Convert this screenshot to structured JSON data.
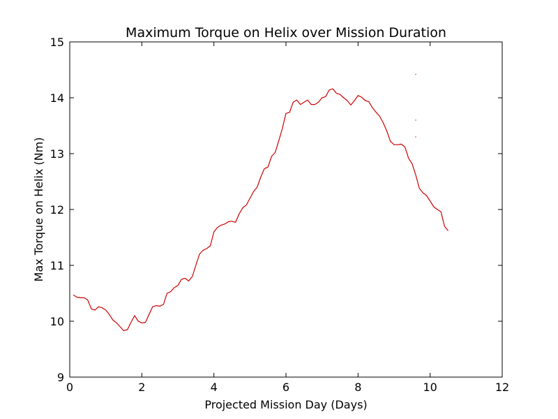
{
  "chart_data": {
    "type": "line",
    "title": "Maximum Torque on Helix over Mission Duration",
    "xlabel": "Projected Mission Day (Days)",
    "ylabel": "Max Torque on Helix (Nm)",
    "xlim": [
      0,
      12
    ],
    "ylim": [
      9,
      15
    ],
    "xticks": [
      0,
      2,
      4,
      6,
      8,
      10,
      12
    ],
    "yticks": [
      9,
      10,
      11,
      12,
      13,
      14,
      15
    ],
    "xtick_labels": [
      "0",
      "2",
      "4",
      "6",
      "8",
      "10",
      "12"
    ],
    "ytick_labels": [
      "9",
      "10",
      "11",
      "12",
      "13",
      "14",
      "15"
    ],
    "grid": false,
    "series": [
      {
        "color": "#cc0000",
        "x": [
          0.1,
          0.2,
          0.3,
          0.4,
          0.5,
          0.6,
          0.7,
          0.8,
          0.9,
          1.0,
          1.1,
          1.2,
          1.3,
          1.4,
          1.5,
          1.6,
          1.7,
          1.8,
          1.9,
          2.0,
          2.1,
          2.2,
          2.3,
          2.4,
          2.5,
          2.6,
          2.7,
          2.8,
          2.9,
          3.0,
          3.1,
          3.2,
          3.3,
          3.4,
          3.5,
          3.6,
          3.7,
          3.8,
          3.9,
          4.0,
          4.1,
          4.2,
          4.3,
          4.4,
          4.5,
          4.6,
          4.7,
          4.8,
          4.9,
          5.0,
          5.1,
          5.2,
          5.3,
          5.4,
          5.5,
          5.6,
          5.7,
          5.8,
          5.9,
          6.0,
          6.1,
          6.2,
          6.3,
          6.4,
          6.5,
          6.6,
          6.7,
          6.8,
          6.9,
          7.0,
          7.1,
          7.2,
          7.3,
          7.4,
          7.5,
          7.6,
          7.7,
          7.8,
          7.9,
          8.0,
          8.1,
          8.2,
          8.3,
          8.4,
          8.5,
          8.6,
          8.7,
          8.8,
          8.9,
          9.0,
          9.1,
          9.2,
          9.3,
          9.4,
          9.5,
          9.6,
          9.7,
          9.8,
          9.9,
          10.0,
          10.1,
          10.2,
          10.3,
          10.4,
          10.5
        ],
        "y": [
          10.47,
          10.43,
          10.42,
          10.42,
          10.38,
          10.22,
          10.2,
          10.26,
          10.24,
          10.2,
          10.12,
          10.02,
          9.97,
          9.9,
          9.83,
          9.85,
          9.98,
          10.1,
          10.0,
          9.97,
          9.98,
          10.12,
          10.26,
          10.28,
          10.27,
          10.3,
          10.5,
          10.53,
          10.6,
          10.64,
          10.75,
          10.77,
          10.72,
          10.8,
          11.0,
          11.2,
          11.27,
          11.3,
          11.35,
          11.6,
          11.68,
          11.72,
          11.74,
          11.78,
          11.79,
          11.77,
          11.92,
          12.03,
          12.08,
          12.2,
          12.32,
          12.4,
          12.58,
          12.73,
          12.76,
          12.95,
          13.02,
          13.23,
          13.45,
          13.72,
          13.74,
          13.92,
          13.96,
          13.88,
          13.92,
          13.96,
          13.88,
          13.88,
          13.92,
          14.0,
          14.02,
          14.14,
          14.16,
          14.08,
          14.06,
          14.0,
          13.95,
          13.87,
          13.95,
          14.04,
          14.01,
          13.95,
          13.93,
          13.82,
          13.74,
          13.67,
          13.55,
          13.4,
          13.22,
          13.16,
          13.16,
          13.17,
          13.12,
          12.92,
          12.82,
          12.62,
          12.38,
          12.3,
          12.25,
          12.15,
          12.05,
          12.0,
          11.96,
          11.7,
          11.62
        ]
      }
    ],
    "stray_points": [
      {
        "x": 9.6,
        "y": 14.42
      },
      {
        "x": 9.6,
        "y": 13.6
      },
      {
        "x": 9.6,
        "y": 13.3
      }
    ]
  }
}
